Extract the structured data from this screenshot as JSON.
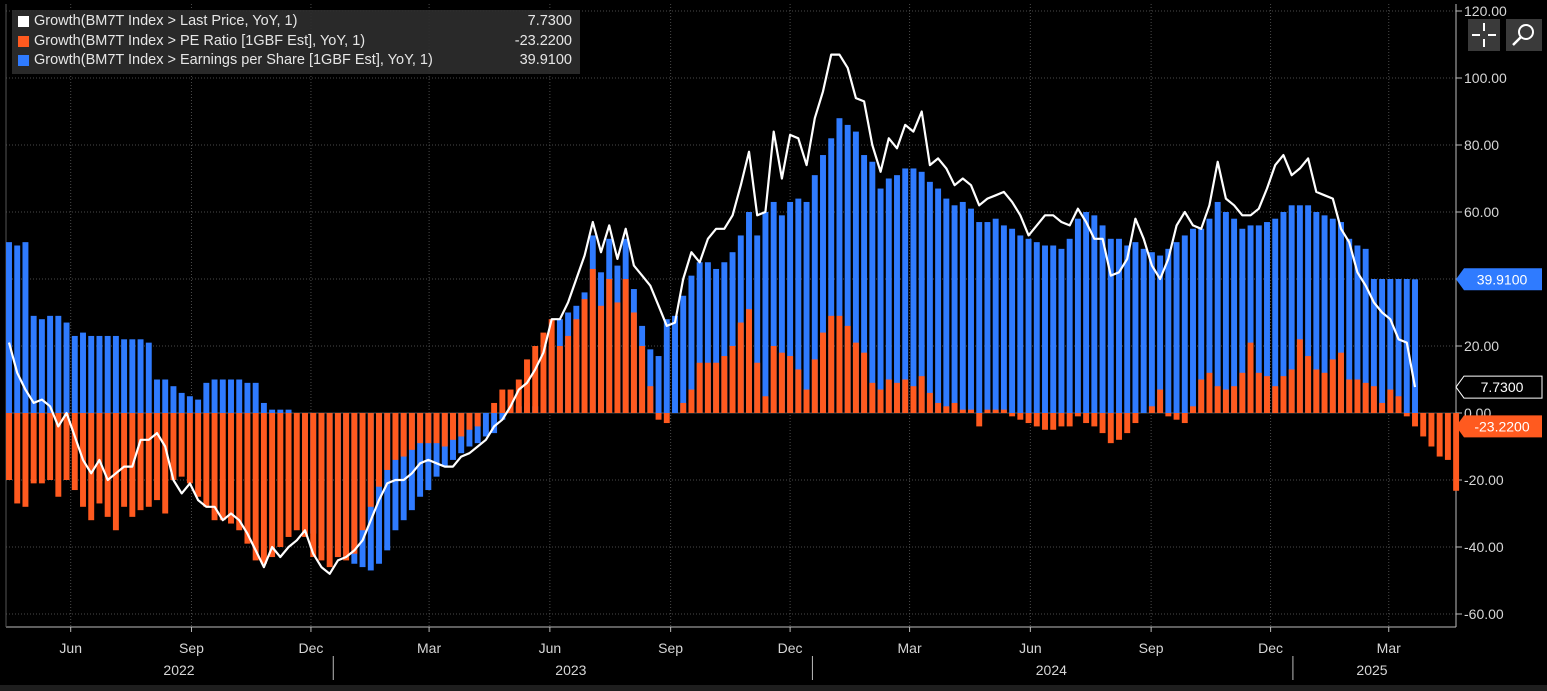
{
  "legend": [
    {
      "label": "Growth(BM7T Index > Last Price, YoY, 1)",
      "value": "7.7300",
      "color": "#ffffff"
    },
    {
      "label": "Growth(BM7T Index > PE Ratio [1GBF Est], YoY, 1)",
      "value": "-23.2200",
      "color": "#ff5a1f"
    },
    {
      "label": "Growth(BM7T Index > Earnings per Share [1GBF Est], YoY, 1)",
      "value": "39.9100",
      "color": "#2f7bff"
    }
  ],
  "tools": {
    "crosshair": "crosshair-icon",
    "zoom": "magnify-icon"
  },
  "colors": {
    "background": "#000000",
    "grid": "#4a4a4a",
    "axis_text": "#d6d6d6",
    "last_price": "#ffffff",
    "pe": "#ff5a1f",
    "eps": "#2f7bff"
  },
  "chart_data": {
    "type": "bar",
    "title": "",
    "xlabel": "",
    "ylabel": "",
    "frequency": "weekly",
    "start_date": "2022-04-29",
    "end_date": "2025-04-04",
    "ylim": [
      -65,
      120
    ],
    "y_ticks": [
      "120.00",
      "100.00",
      "80.00",
      "60.00",
      "40.00",
      "20.00",
      "0.00",
      "-20.00",
      "-40.00",
      "-60.00"
    ],
    "x_month_labels": [
      "Jun",
      "Sep",
      "Dec",
      "Mar",
      "Jun",
      "Sep",
      "Dec",
      "Mar",
      "Jun",
      "Sep",
      "Dec",
      "Mar"
    ],
    "x_year_labels": [
      "2022",
      "2023",
      "2024",
      "2025"
    ],
    "grid": true,
    "legend_position": "top-left",
    "last_value_tags": [
      {
        "series": "eps",
        "text": "39.9100"
      },
      {
        "series": "last_price",
        "text": "7.7300"
      },
      {
        "series": "pe",
        "text": "-23.2200"
      }
    ],
    "series": [
      {
        "name": "Growth(BM7T Index > Last Price, YoY, 1)",
        "type": "line",
        "values": [
          21,
          12,
          7,
          3,
          4,
          2,
          -4,
          0,
          -7,
          -14,
          -18,
          -14,
          -20,
          -18,
          -16,
          -16,
          -8,
          -8,
          -6,
          -10,
          -20,
          -24,
          -21,
          -26,
          -28,
          -28,
          -32,
          -30,
          -32,
          -36,
          -41,
          -46,
          -40,
          -43,
          -40,
          -38,
          -35,
          -42,
          -46,
          -48,
          -44,
          -43,
          -41,
          -38,
          -32,
          -26,
          -21,
          -20,
          -20,
          -18,
          -15,
          -14,
          -15,
          -16,
          -16,
          -13,
          -12,
          -10,
          -8,
          -4,
          -2,
          2,
          7,
          9,
          13,
          18,
          28,
          28,
          33,
          40,
          47,
          57,
          48,
          56,
          46,
          55,
          44,
          41,
          38,
          32,
          26,
          27,
          40,
          48,
          45,
          52,
          55,
          55,
          59,
          68,
          78,
          59,
          60,
          84,
          70,
          83,
          82,
          74,
          88,
          96,
          107,
          107,
          103,
          94,
          93,
          80,
          72,
          82,
          79,
          86,
          84,
          90,
          74,
          76,
          73,
          68,
          70,
          68,
          62,
          64,
          65,
          66,
          63,
          59,
          53,
          56,
          59,
          59,
          57,
          56,
          61,
          57,
          52,
          52,
          41,
          42,
          46,
          58,
          52,
          44,
          40,
          46,
          56,
          60,
          56,
          55,
          62,
          75,
          64,
          62,
          59,
          59,
          61,
          67,
          74,
          77,
          71,
          73,
          76,
          66,
          65,
          64,
          55,
          51,
          42,
          38,
          33,
          30,
          28,
          22,
          21,
          7.73
        ]
      },
      {
        "name": "Growth(BM7T Index > PE Ratio [1GBF Est], YoY, 1)",
        "type": "bar",
        "values": [
          -20,
          -27,
          -28,
          -21,
          -21,
          -20,
          -25,
          -20,
          -23,
          -28,
          -32,
          -27,
          -31,
          -35,
          -28,
          -31,
          -29,
          -28,
          -26,
          -30,
          -20,
          -19,
          -21,
          -25,
          -28,
          -32,
          -32,
          -33,
          -35,
          -39,
          -44,
          -45,
          -43,
          -40,
          -37,
          -35,
          -37,
          -43,
          -44,
          -46,
          -43,
          -44,
          -42,
          -35,
          -28,
          -22,
          -17,
          -14,
          -13,
          -11,
          -9,
          -9,
          -9,
          -10,
          -8,
          -7,
          -5,
          -4,
          0,
          3,
          7,
          7,
          10,
          16,
          20,
          24,
          28,
          20,
          23,
          28,
          34,
          43,
          32,
          40,
          33,
          40,
          30,
          20,
          8,
          -2,
          -3,
          0,
          3,
          7,
          15,
          15,
          15,
          17,
          20,
          27,
          31,
          15,
          5,
          20,
          18,
          17,
          13,
          7,
          16,
          24,
          29,
          29,
          26,
          21,
          18,
          9,
          7,
          10,
          9,
          10,
          8,
          11,
          6,
          3,
          2,
          3,
          1,
          1,
          -4,
          1,
          1,
          1,
          -1,
          -2,
          -3,
          -4,
          -5,
          -5,
          -4,
          -4,
          -1,
          -3,
          -4,
          -6,
          -9,
          -8,
          -6,
          -3,
          0,
          2,
          7,
          -1,
          -2,
          -3,
          2,
          10,
          12,
          8,
          7,
          8,
          12,
          21,
          12,
          11,
          8,
          11,
          13,
          22,
          17,
          13,
          12,
          16,
          18,
          10,
          10,
          9,
          8,
          3,
          7,
          5,
          -1,
          -4,
          -7,
          -10,
          -13,
          -14,
          -23.22
        ]
      },
      {
        "name": "Growth(BM7T Index > Earnings per Share [1GBF Est], YoY, 1)",
        "type": "bar",
        "values": [
          51,
          50,
          51,
          29,
          28,
          29,
          29,
          27,
          23,
          24,
          23,
          23,
          23,
          23,
          22,
          22,
          22,
          21,
          10,
          10,
          8,
          6,
          5,
          4,
          9,
          10,
          10,
          10,
          10,
          9,
          9,
          3,
          1,
          1,
          1,
          0,
          -35,
          -36,
          -38,
          -41,
          -43,
          -43,
          -45,
          -46,
          -47,
          -45,
          -41,
          -35,
          -32,
          -29,
          -25,
          -23,
          -19,
          -16,
          -14,
          -12,
          -10,
          -9,
          -7,
          -6,
          -2,
          1,
          2,
          3,
          2,
          7,
          20,
          28,
          30,
          32,
          36,
          53,
          42,
          52,
          44,
          52,
          37,
          26,
          19,
          17,
          28,
          29,
          35,
          41,
          45,
          45,
          43,
          45,
          48,
          53,
          60,
          53,
          60,
          63,
          59,
          63,
          64,
          63,
          71,
          77,
          82,
          88,
          86,
          84,
          77,
          75,
          67,
          70,
          71,
          73,
          73,
          72,
          69,
          67,
          64,
          62,
          63,
          61,
          57,
          57,
          58,
          56,
          55,
          53,
          52,
          51,
          50,
          50,
          49,
          52,
          58,
          60,
          59,
          56,
          52,
          52,
          50,
          51,
          49,
          48,
          47,
          49,
          51,
          53,
          55,
          55,
          58,
          63,
          60,
          58,
          55,
          56,
          56,
          57,
          58,
          60,
          62,
          62,
          62,
          60,
          59,
          58,
          57,
          52,
          50,
          49,
          40,
          40,
          40,
          40,
          40,
          39.91
        ]
      }
    ]
  }
}
